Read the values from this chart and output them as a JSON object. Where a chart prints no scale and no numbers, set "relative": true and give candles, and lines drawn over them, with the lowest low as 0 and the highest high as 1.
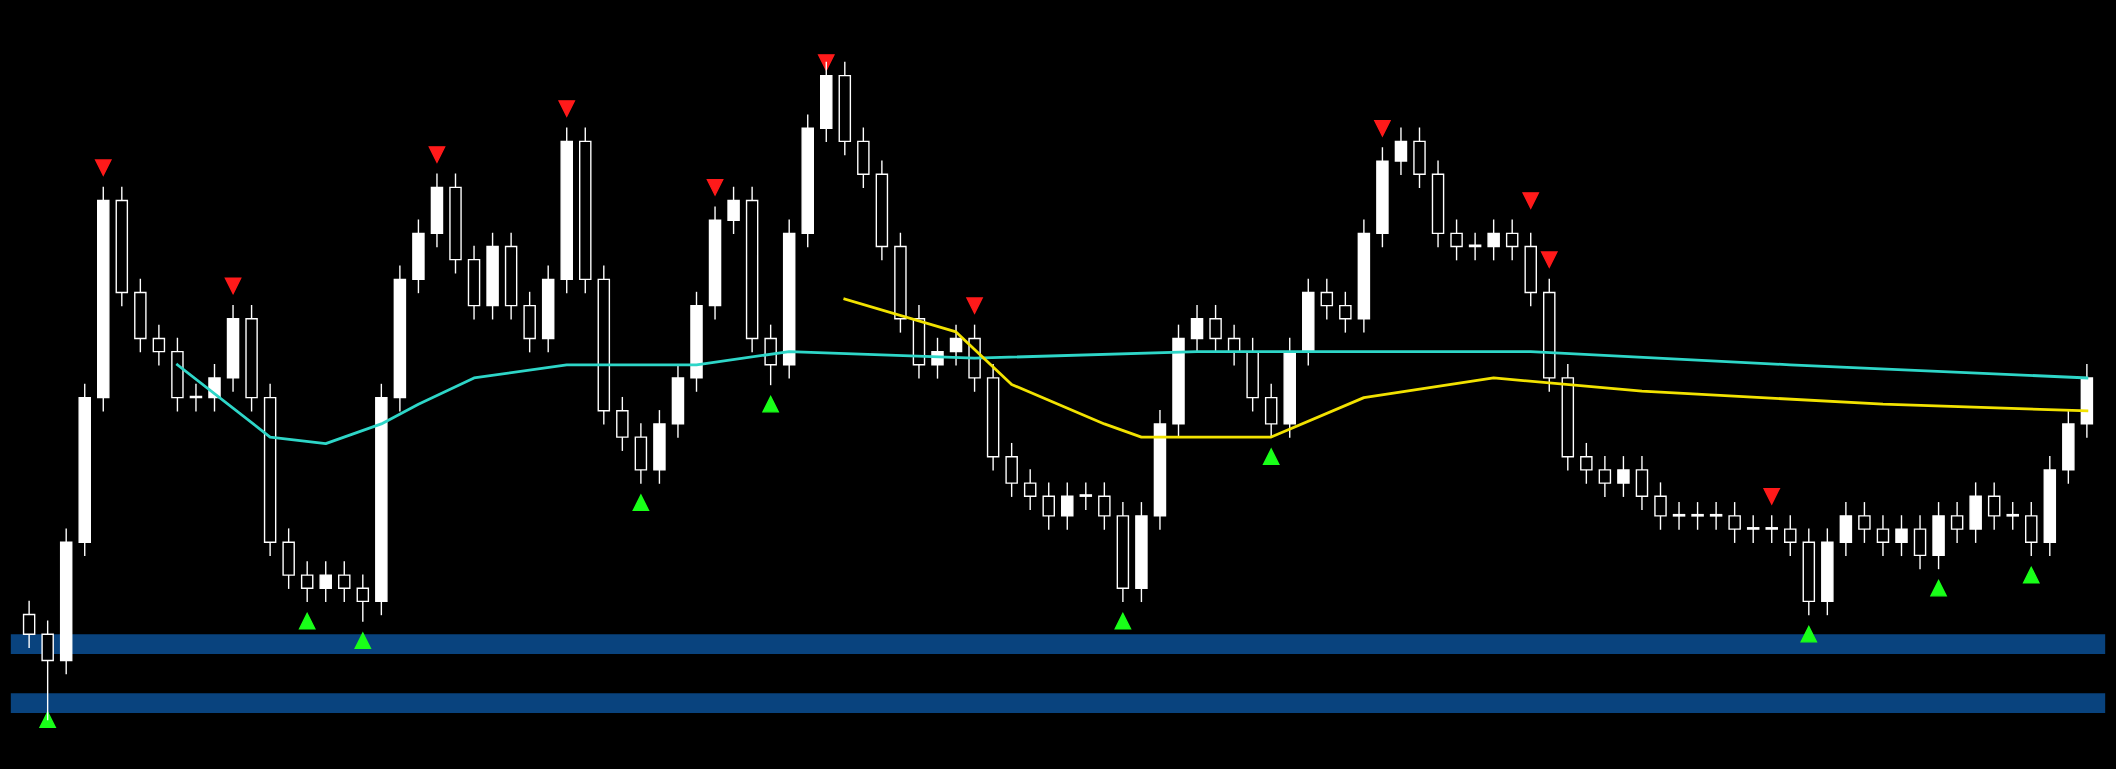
{
  "chart_data": {
    "type": "candlestick",
    "relative": true,
    "categories": [
      null,
      null,
      null,
      null,
      null,
      null,
      null,
      null,
      null,
      null,
      null,
      null,
      null,
      null,
      null,
      null,
      null,
      null,
      null,
      null,
      null,
      null,
      null,
      null,
      null,
      null,
      null,
      null,
      null,
      null,
      null,
      null,
      null,
      null,
      null,
      null,
      null,
      null,
      null,
      null,
      null,
      null,
      null,
      null,
      null,
      null,
      null,
      null,
      null,
      null,
      null,
      null,
      null,
      null,
      null,
      null,
      null,
      null,
      null,
      null,
      null,
      null,
      null,
      null,
      null,
      null,
      null,
      null,
      null,
      null,
      null,
      null,
      null,
      null,
      null,
      null,
      null,
      null,
      null,
      null,
      null,
      null,
      null,
      null,
      null,
      null,
      null,
      null,
      null,
      null,
      null,
      null,
      null,
      null,
      null,
      null,
      null,
      null,
      null,
      null,
      null,
      null,
      null,
      null,
      null,
      null,
      null,
      null,
      null,
      null,
      null,
      null
    ],
    "ohlc": [
      [
        0.16,
        0.18,
        0.11,
        0.13
      ],
      [
        0.13,
        0.15,
        0,
        0.09
      ],
      [
        0.09,
        0.29,
        0.07,
        0.27
      ],
      [
        0.27,
        0.51,
        0.25,
        0.49
      ],
      [
        0.49,
        0.81,
        0.47,
        0.79
      ],
      [
        0.79,
        0.81,
        0.63,
        0.65
      ],
      [
        0.65,
        0.67,
        0.56,
        0.58
      ],
      [
        0.58,
        0.6,
        0.54,
        0.56
      ],
      [
        0.56,
        0.58,
        0.47,
        0.49
      ],
      [
        0.49,
        0.51,
        0.47,
        0.49
      ],
      [
        0.49,
        0.54,
        0.47,
        0.52
      ],
      [
        0.52,
        0.63,
        0.5,
        0.61
      ],
      [
        0.61,
        0.63,
        0.47,
        0.49
      ],
      [
        0.49,
        0.51,
        0.25,
        0.27
      ],
      [
        0.27,
        0.29,
        0.2,
        0.22
      ],
      [
        0.22,
        0.24,
        0.18,
        0.2
      ],
      [
        0.2,
        0.24,
        0.18,
        0.22
      ],
      [
        0.22,
        0.24,
        0.18,
        0.2
      ],
      [
        0.2,
        0.22,
        0.15,
        0.18
      ],
      [
        0.18,
        0.51,
        0.16,
        0.49
      ],
      [
        0.49,
        0.69,
        0.47,
        0.67
      ],
      [
        0.67,
        0.76,
        0.65,
        0.74
      ],
      [
        0.74,
        0.83,
        0.72,
        0.81
      ],
      [
        0.81,
        0.83,
        0.68,
        0.7
      ],
      [
        0.7,
        0.72,
        0.61,
        0.63
      ],
      [
        0.63,
        0.74,
        0.61,
        0.72
      ],
      [
        0.72,
        0.74,
        0.61,
        0.63
      ],
      [
        0.63,
        0.65,
        0.56,
        0.58
      ],
      [
        0.58,
        0.69,
        0.56,
        0.67
      ],
      [
        0.67,
        0.9,
        0.65,
        0.88
      ],
      [
        0.88,
        0.9,
        0.65,
        0.67
      ],
      [
        0.67,
        0.69,
        0.45,
        0.47
      ],
      [
        0.47,
        0.49,
        0.41,
        0.43
      ],
      [
        0.43,
        0.45,
        0.36,
        0.38
      ],
      [
        0.38,
        0.47,
        0.36,
        0.45
      ],
      [
        0.45,
        0.54,
        0.43,
        0.52
      ],
      [
        0.52,
        0.65,
        0.5,
        0.63
      ],
      [
        0.63,
        0.78,
        0.61,
        0.76
      ],
      [
        0.76,
        0.81,
        0.74,
        0.79
      ],
      [
        0.79,
        0.81,
        0.56,
        0.58
      ],
      [
        0.58,
        0.6,
        0.51,
        0.54
      ],
      [
        0.54,
        0.76,
        0.52,
        0.74
      ],
      [
        0.74,
        0.92,
        0.72,
        0.9
      ],
      [
        0.9,
        1.0,
        0.88,
        0.98
      ],
      [
        0.98,
        1.0,
        0.86,
        0.88
      ],
      [
        0.88,
        0.9,
        0.81,
        0.83
      ],
      [
        0.83,
        0.85,
        0.7,
        0.72
      ],
      [
        0.72,
        0.74,
        0.59,
        0.61
      ],
      [
        0.61,
        0.63,
        0.52,
        0.54
      ],
      [
        0.54,
        0.58,
        0.52,
        0.56
      ],
      [
        0.56,
        0.6,
        0.54,
        0.58
      ],
      [
        0.58,
        0.6,
        0.5,
        0.52
      ],
      [
        0.52,
        0.54,
        0.38,
        0.4
      ],
      [
        0.4,
        0.42,
        0.34,
        0.36
      ],
      [
        0.36,
        0.38,
        0.32,
        0.34
      ],
      [
        0.34,
        0.36,
        0.29,
        0.31
      ],
      [
        0.31,
        0.36,
        0.29,
        0.34
      ],
      [
        0.34,
        0.36,
        0.32,
        0.34
      ],
      [
        0.34,
        0.36,
        0.29,
        0.31
      ],
      [
        0.31,
        0.33,
        0.18,
        0.2
      ],
      [
        0.2,
        0.33,
        0.18,
        0.31
      ],
      [
        0.31,
        0.47,
        0.29,
        0.45
      ],
      [
        0.45,
        0.6,
        0.43,
        0.58
      ],
      [
        0.58,
        0.63,
        0.56,
        0.61
      ],
      [
        0.61,
        0.63,
        0.56,
        0.58
      ],
      [
        0.58,
        0.6,
        0.54,
        0.56
      ],
      [
        0.56,
        0.58,
        0.47,
        0.49
      ],
      [
        0.49,
        0.51,
        0.43,
        0.45
      ],
      [
        0.45,
        0.58,
        0.43,
        0.56
      ],
      [
        0.56,
        0.67,
        0.54,
        0.65
      ],
      [
        0.65,
        0.67,
        0.61,
        0.63
      ],
      [
        0.63,
        0.65,
        0.59,
        0.61
      ],
      [
        0.61,
        0.76,
        0.59,
        0.74
      ],
      [
        0.74,
        0.87,
        0.72,
        0.85
      ],
      [
        0.85,
        0.9,
        0.83,
        0.88
      ],
      [
        0.88,
        0.9,
        0.81,
        0.83
      ],
      [
        0.83,
        0.85,
        0.72,
        0.74
      ],
      [
        0.74,
        0.76,
        0.7,
        0.72
      ],
      [
        0.72,
        0.74,
        0.7,
        0.72
      ],
      [
        0.72,
        0.76,
        0.7,
        0.74
      ],
      [
        0.74,
        0.76,
        0.7,
        0.72
      ],
      [
        0.72,
        0.74,
        0.63,
        0.65
      ],
      [
        0.65,
        0.67,
        0.5,
        0.52
      ],
      [
        0.52,
        0.54,
        0.38,
        0.4
      ],
      [
        0.4,
        0.42,
        0.36,
        0.38
      ],
      [
        0.38,
        0.4,
        0.34,
        0.36
      ],
      [
        0.36,
        0.4,
        0.34,
        0.38
      ],
      [
        0.38,
        0.4,
        0.32,
        0.34
      ],
      [
        0.34,
        0.36,
        0.29,
        0.31
      ],
      [
        0.31,
        0.33,
        0.29,
        0.31
      ],
      [
        0.31,
        0.33,
        0.29,
        0.31
      ],
      [
        0.31,
        0.33,
        0.29,
        0.31
      ],
      [
        0.31,
        0.33,
        0.27,
        0.29
      ],
      [
        0.29,
        0.31,
        0.27,
        0.29
      ],
      [
        0.29,
        0.31,
        0.27,
        0.29
      ],
      [
        0.29,
        0.31,
        0.25,
        0.27
      ],
      [
        0.27,
        0.29,
        0.16,
        0.18
      ],
      [
        0.18,
        0.29,
        0.16,
        0.27
      ],
      [
        0.27,
        0.33,
        0.25,
        0.31
      ],
      [
        0.31,
        0.33,
        0.27,
        0.29
      ],
      [
        0.29,
        0.31,
        0.25,
        0.27
      ],
      [
        0.27,
        0.31,
        0.25,
        0.29
      ],
      [
        0.29,
        0.31,
        0.23,
        0.25
      ],
      [
        0.25,
        0.33,
        0.23,
        0.31
      ],
      [
        0.31,
        0.33,
        0.27,
        0.29
      ],
      [
        0.29,
        0.36,
        0.27,
        0.34
      ],
      [
        0.34,
        0.36,
        0.29,
        0.31
      ],
      [
        0.31,
        0.33,
        0.29,
        0.31
      ],
      [
        0.31,
        0.33,
        0.25,
        0.27
      ],
      [
        0.27,
        0.4,
        0.25,
        0.38
      ],
      [
        0.38,
        0.47,
        0.36,
        0.45
      ],
      [
        0.45,
        0.54,
        0.43,
        0.52
      ]
    ],
    "series": [
      {
        "type": "line",
        "color": "#2ed6c8",
        "values": [
          null,
          null,
          null,
          null,
          null,
          null,
          null,
          null,
          0.54,
          null,
          null,
          null,
          null,
          0.43,
          null,
          null,
          0.42,
          null,
          null,
          0.45,
          null,
          0.48,
          null,
          null,
          0.52,
          null,
          null,
          null,
          null,
          0.54,
          null,
          null,
          null,
          null,
          null,
          null,
          0.54,
          null,
          null,
          null,
          null,
          0.56,
          null,
          null,
          null,
          null,
          null,
          null,
          null,
          null,
          null,
          0.55,
          null,
          null,
          null,
          null,
          null,
          null,
          null,
          null,
          null,
          null,
          null,
          0.56,
          null,
          null,
          null,
          null,
          null,
          null,
          null,
          null,
          null,
          null,
          null,
          null,
          null,
          null,
          null,
          null,
          null,
          0.56,
          null,
          null,
          null,
          null,
          null,
          null,
          null,
          null,
          null,
          null,
          null,
          null,
          null,
          0.54,
          null,
          null,
          null,
          null,
          null,
          null,
          null,
          null,
          null,
          null,
          null,
          null,
          null,
          null,
          null,
          0.52
        ]
      },
      {
        "type": "line",
        "color": "#f2e200",
        "values": [
          null,
          null,
          null,
          null,
          null,
          null,
          null,
          null,
          null,
          null,
          null,
          null,
          null,
          null,
          null,
          null,
          null,
          null,
          null,
          null,
          null,
          null,
          null,
          null,
          null,
          null,
          null,
          null,
          null,
          null,
          null,
          null,
          null,
          null,
          null,
          null,
          null,
          null,
          null,
          null,
          null,
          null,
          null,
          null,
          0.64,
          null,
          null,
          null,
          null,
          null,
          0.59,
          null,
          null,
          0.51,
          null,
          null,
          null,
          null,
          0.45,
          null,
          0.43,
          null,
          null,
          null,
          null,
          null,
          null,
          0.43,
          null,
          null,
          null,
          null,
          0.49,
          null,
          null,
          null,
          null,
          null,
          null,
          0.52,
          null,
          null,
          null,
          null,
          null,
          null,
          null,
          0.5,
          null,
          null,
          null,
          null,
          null,
          null,
          null,
          null,
          null,
          null,
          null,
          null,
          0.48,
          null,
          null,
          null,
          null,
          null,
          null,
          null,
          null,
          null,
          null,
          0.47
        ]
      },
      {
        "type": "scatter",
        "color": "#ff1a1a",
        "marker": "triangle",
        "values": [
          null,
          null,
          null,
          null,
          0.84,
          null,
          null,
          null,
          null,
          null,
          null,
          0.66,
          null,
          null,
          null,
          null,
          null,
          null,
          null,
          null,
          null,
          null,
          0.86,
          null,
          null,
          null,
          null,
          null,
          null,
          0.93,
          null,
          null,
          null,
          null,
          null,
          null,
          null,
          0.81,
          null,
          null,
          null,
          null,
          null,
          1.0,
          null,
          null,
          null,
          null,
          null,
          null,
          null,
          0.63,
          null,
          null,
          null,
          null,
          null,
          null,
          null,
          null,
          null,
          null,
          null,
          null,
          null,
          null,
          null,
          null,
          null,
          null,
          null,
          null,
          null,
          0.9,
          null,
          null,
          null,
          null,
          null,
          null,
          null,
          0.79,
          0.7,
          null,
          null,
          null,
          null,
          null,
          null,
          null,
          null,
          null,
          null,
          null,
          0.34,
          null,
          null,
          null,
          null,
          null,
          null,
          null,
          null,
          null,
          null,
          null,
          null,
          null,
          null,
          null,
          null,
          null
        ]
      },
      {
        "type": "scatter",
        "color": "#19ff19",
        "marker": "triangle",
        "values": [
          null,
          0,
          null,
          null,
          null,
          null,
          null,
          null,
          null,
          null,
          null,
          null,
          null,
          null,
          null,
          0.15,
          null,
          null,
          0.12,
          null,
          null,
          null,
          null,
          null,
          null,
          null,
          null,
          null,
          null,
          null,
          null,
          null,
          null,
          0.33,
          null,
          null,
          null,
          null,
          null,
          null,
          0.48,
          null,
          null,
          null,
          null,
          null,
          null,
          null,
          null,
          null,
          null,
          null,
          null,
          null,
          null,
          null,
          null,
          null,
          null,
          0.15,
          null,
          null,
          null,
          null,
          null,
          null,
          null,
          0.4,
          null,
          null,
          null,
          null,
          null,
          null,
          null,
          null,
          null,
          null,
          null,
          null,
          null,
          null,
          null,
          null,
          null,
          null,
          null,
          null,
          null,
          null,
          null,
          null,
          null,
          null,
          null,
          null,
          0.13,
          null,
          null,
          null,
          null,
          null,
          null,
          0.2,
          null,
          null,
          null,
          null,
          0.22,
          null,
          null,
          null
        ]
      }
    ],
    "bands": [
      {
        "axis": "y",
        "from": 0.01,
        "to": 0.04,
        "color": "#0a4a8c"
      },
      {
        "axis": "y",
        "from": 0.1,
        "to": 0.13,
        "color": "#0a4a8c"
      }
    ]
  }
}
